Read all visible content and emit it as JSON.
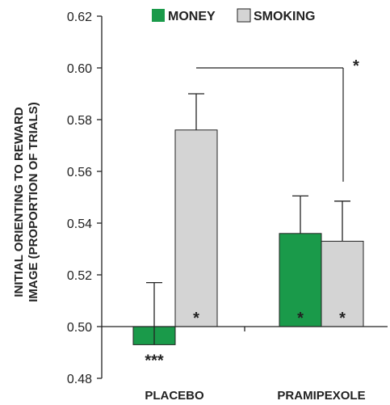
{
  "chart_data": {
    "type": "bar",
    "categories": [
      "PLACEBO",
      "PRAMIPEXOLE"
    ],
    "series": [
      {
        "name": "MONEY",
        "color": "#1a9a4a",
        "values": [
          0.493,
          0.536
        ],
        "error": [
          0.024,
          0.0145
        ],
        "bar_annotation": [
          "***",
          "*"
        ]
      },
      {
        "name": "SMOKING",
        "color": "#d4d4d4",
        "values": [
          0.576,
          0.533
        ],
        "error": [
          0.014,
          0.0155
        ],
        "bar_annotation": [
          "*",
          "*"
        ]
      }
    ],
    "ylabel": [
      "INITIAL  ORIENTING TO REWARD",
      "IMAGE (PROPORTION OF TRIALS)"
    ],
    "ylim": [
      0.48,
      0.62
    ],
    "baseline": 0.5,
    "yticks": [
      "0.48",
      "0.50",
      "0.52",
      "0.54",
      "0.56",
      "0.58",
      "0.60",
      "0.62"
    ],
    "legend_position": "top",
    "comparison": {
      "label": "*",
      "between": "PLACEBO SMOKING vs PRAMIPEXOLE SMOKING"
    }
  }
}
